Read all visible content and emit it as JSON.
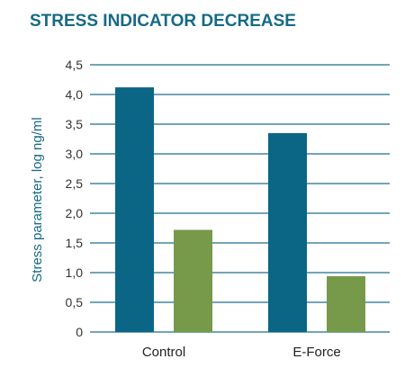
{
  "chart_data": {
    "type": "bar",
    "title": "STRESS INDICATOR DECREASE",
    "xlabel": "",
    "ylabel": "Stress parameter, log ng/ml",
    "categories": [
      "Control",
      "E-Force"
    ],
    "series": [
      {
        "values": [
          4.12,
          3.35
        ],
        "color": "#0b6686"
      },
      {
        "values": [
          1.72,
          0.94
        ],
        "color": "#77994a"
      }
    ],
    "ylim": [
      0,
      4.5
    ],
    "yticks": [
      "0",
      "0,5",
      "1,0",
      "1,5",
      "2,0",
      "2,5",
      "3,0",
      "3,5",
      "4,0",
      "4,5"
    ],
    "grid": true,
    "gridline_color": "#1f6f8e"
  }
}
